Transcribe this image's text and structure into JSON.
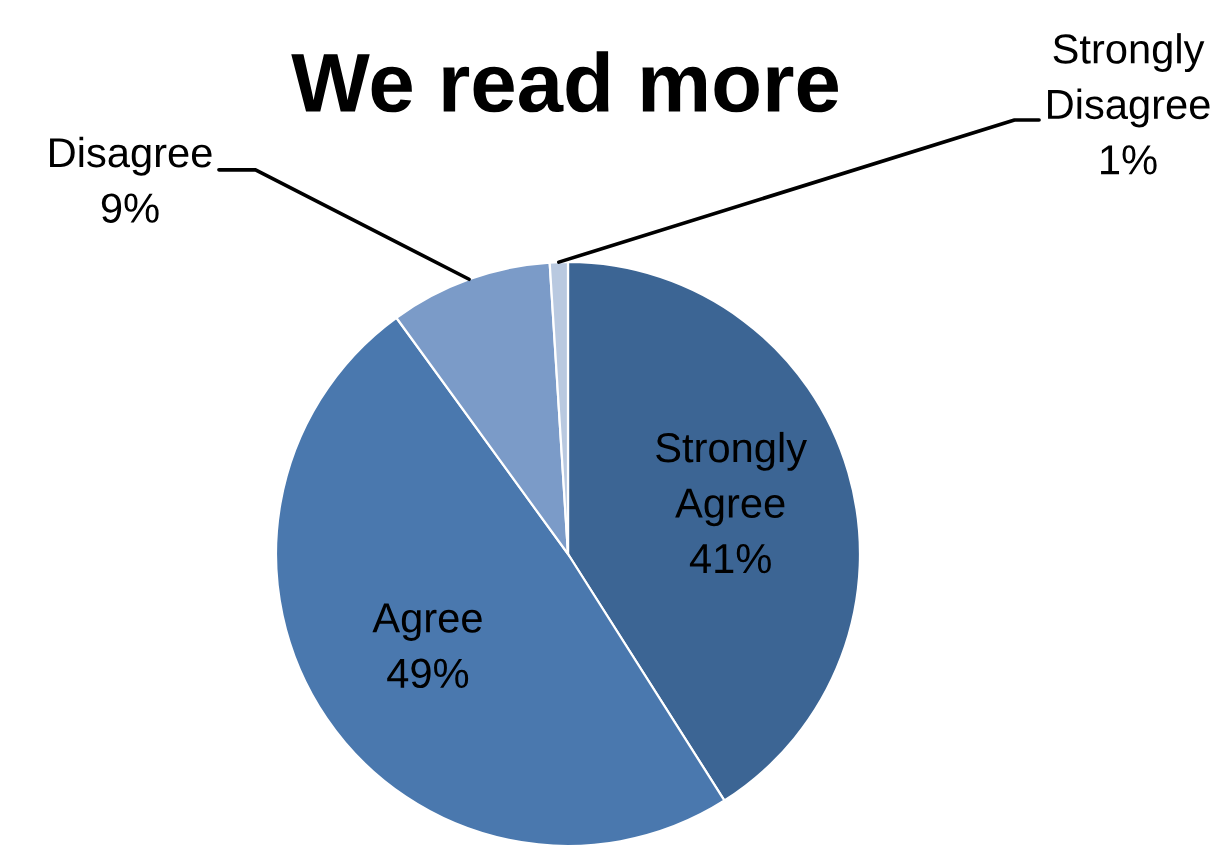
{
  "chart_data": {
    "type": "pie",
    "title": "We read more",
    "categories": [
      "Strongly Agree",
      "Agree",
      "Disagree",
      "Strongly Disagree"
    ],
    "values": [
      41,
      49,
      9,
      1
    ],
    "colors": [
      "#3c6594",
      "#4a78ae",
      "#7b9bc8",
      "#b9c9e0"
    ],
    "value_labels": [
      "41%",
      "49%",
      "9%",
      "1%"
    ]
  }
}
